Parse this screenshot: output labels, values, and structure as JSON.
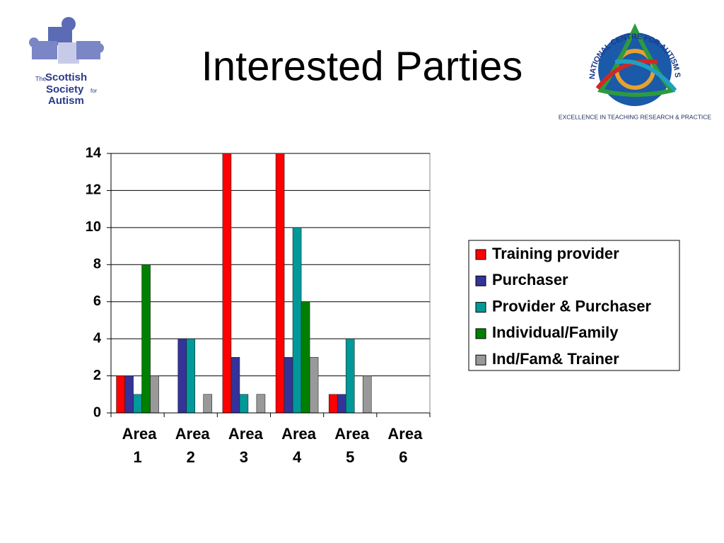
{
  "title": "Interested Parties",
  "logos": {
    "left": [
      "The",
      "Scottish",
      "Society",
      "for",
      "Autism"
    ],
    "right_ring": "NATIONAL CENTRE FOR AUTISM STUDIES",
    "right_caption": "EXCELLENCE IN TEACHING RESEARCH & PRACTICE"
  },
  "chart_data": {
    "type": "bar",
    "categories": [
      "Area 1",
      "Area 2",
      "Area 3",
      "Area 4",
      "Area 5",
      "Area 6"
    ],
    "series": [
      {
        "name": "Training provider",
        "color": "#ff0000",
        "values": [
          2,
          0,
          14,
          14,
          1,
          0
        ]
      },
      {
        "name": "Purchaser",
        "color": "#333399",
        "values": [
          2,
          4,
          3,
          3,
          1,
          0
        ]
      },
      {
        "name": "Provider & Purchaser",
        "color": "#009999",
        "values": [
          1,
          4,
          1,
          10,
          4,
          0
        ]
      },
      {
        "name": "Individual/Family",
        "color": "#008000",
        "values": [
          8,
          0,
          0,
          6,
          0,
          0
        ]
      },
      {
        "name": "Ind/Fam& Trainer",
        "color": "#999999",
        "values": [
          2,
          1,
          1,
          3,
          2,
          0
        ]
      }
    ],
    "ylim": [
      0,
      14
    ],
    "yticks": [
      0,
      2,
      4,
      6,
      8,
      10,
      12,
      14
    ],
    "grid": true,
    "legend": "right"
  }
}
